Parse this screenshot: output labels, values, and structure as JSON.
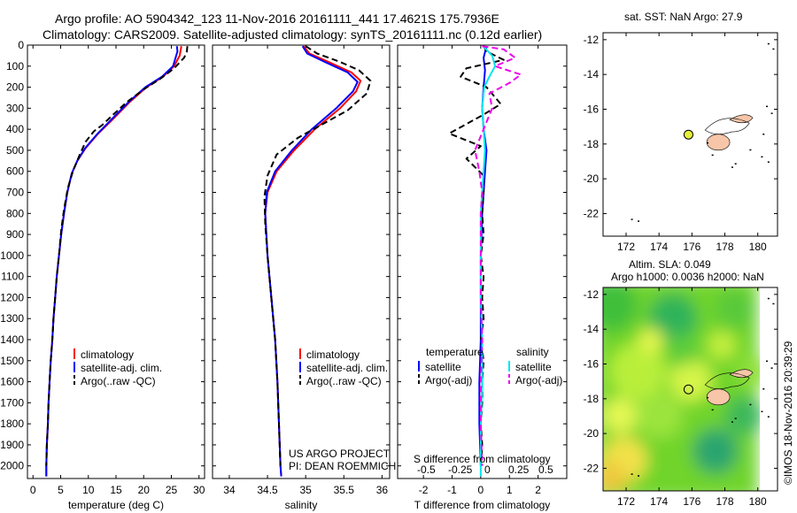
{
  "header": {
    "line1": "Argo profile: AO 5904342_123 11-Nov-2016 20161111_441 17.4621S 175.7936E",
    "line2": "Climatology: CARS2009. Satellite-adjusted climatology: synTS_20161111.nc (0.12d earlier)"
  },
  "sst_title": "sat. SST: NaN Argo: 27.9",
  "sla_title1": "Altim. SLA: 0.049",
  "sla_title2": "Argo h1000: 0.0036 h2000: NaN",
  "credit": "©IMOS 18-Nov-2016 20:39:29",
  "project": {
    "line1": "US ARGO PROJECT",
    "line2": "PI: DEAN ROEMMICH"
  },
  "colors": {
    "climatology": "#ff0000",
    "satellite": "#0000ff",
    "argo": "#000000",
    "sat_salinity": "#00e5ee",
    "argo_salinity": "#ee00ee",
    "land": "#f7c5a8"
  },
  "chart_data": [
    {
      "type": "line",
      "id": "temperature",
      "xlabel": "temperature (deg C)",
      "xlim": [
        -1,
        31
      ],
      "xticks": [
        0,
        5,
        10,
        15,
        20,
        25,
        30
      ],
      "ylim": [
        2060,
        0
      ],
      "yticks": [
        0,
        100,
        200,
        300,
        400,
        500,
        600,
        700,
        800,
        900,
        1000,
        1100,
        1200,
        1300,
        1400,
        1500,
        1600,
        1700,
        1800,
        1900,
        2000
      ],
      "legend": [
        "climatology",
        "satellite-adj. clim.",
        "Argo(..raw -QC)"
      ],
      "series": [
        {
          "name": "climatology",
          "points": [
            [
              26.8,
              5
            ],
            [
              26.5,
              50
            ],
            [
              25.5,
              100
            ],
            [
              23.5,
              150
            ],
            [
              20.5,
              200
            ],
            [
              17.5,
              270
            ],
            [
              14.5,
              350
            ],
            [
              11.8,
              420
            ],
            [
              9.5,
              490
            ],
            [
              8,
              550
            ],
            [
              7,
              610
            ],
            [
              6.2,
              700
            ],
            [
              5.6,
              800
            ],
            [
              5.1,
              900
            ],
            [
              4.7,
              1000
            ],
            [
              4.3,
              1100
            ],
            [
              4,
              1200
            ],
            [
              3.7,
              1300
            ],
            [
              3.5,
              1400
            ],
            [
              3.2,
              1500
            ],
            [
              3,
              1600
            ],
            [
              2.8,
              1700
            ],
            [
              2.7,
              1800
            ],
            [
              2.5,
              1900
            ],
            [
              2.4,
              2000
            ],
            [
              2.4,
              2050
            ]
          ]
        },
        {
          "name": "satellite-adj. clim.",
          "points": [
            [
              26,
              5
            ],
            [
              26.1,
              30
            ],
            [
              25.3,
              100
            ],
            [
              23.3,
              150
            ],
            [
              20.3,
              200
            ],
            [
              17.3,
              270
            ],
            [
              14.3,
              350
            ],
            [
              11.7,
              420
            ],
            [
              9.4,
              490
            ],
            [
              8,
              550
            ],
            [
              7,
              610
            ],
            [
              6.2,
              700
            ],
            [
              5.6,
              800
            ],
            [
              5.1,
              900
            ],
            [
              4.7,
              1000
            ],
            [
              4.3,
              1100
            ],
            [
              4,
              1200
            ],
            [
              3.7,
              1300
            ],
            [
              3.5,
              1400
            ],
            [
              3.2,
              1500
            ],
            [
              3,
              1600
            ],
            [
              2.8,
              1700
            ],
            [
              2.7,
              1800
            ],
            [
              2.5,
              1900
            ],
            [
              2.4,
              2000
            ],
            [
              2.4,
              2050
            ]
          ]
        },
        {
          "name": "Argo(..raw -QC)",
          "points": [
            [
              27.9,
              5
            ],
            [
              27.8,
              30
            ],
            [
              27.3,
              60
            ],
            [
              25.5,
              110
            ],
            [
              23,
              160
            ],
            [
              20,
              210
            ],
            [
              17,
              270
            ],
            [
              14.5,
              330
            ],
            [
              12.5,
              380
            ],
            [
              11,
              410
            ],
            [
              9.5,
              460
            ],
            [
              8.3,
              530
            ],
            [
              7.2,
              600
            ],
            [
              6.3,
              680
            ],
            [
              5.6,
              780
            ],
            [
              5.1,
              880
            ],
            [
              4.7,
              1000
            ],
            [
              4.3,
              1100
            ],
            [
              4,
              1200
            ],
            [
              3.7,
              1300
            ],
            [
              3.5,
              1400
            ],
            [
              3.2,
              1500
            ],
            [
              3,
              1600
            ],
            [
              2.8,
              1700
            ],
            [
              2.7,
              1800
            ],
            [
              2.5,
              1900
            ],
            [
              2.4,
              2000
            ]
          ]
        }
      ]
    },
    {
      "type": "line",
      "id": "salinity",
      "xlabel": "salinity",
      "xlim": [
        33.78,
        36.1
      ],
      "xticks": [
        34,
        34.5,
        35,
        35.5,
        36
      ],
      "ylim": [
        2060,
        0
      ],
      "legend": [
        "climatology",
        "satellite-adj. clim.",
        "Argo(..raw -QC)"
      ],
      "series": [
        {
          "name": "climatology",
          "points": [
            [
              34.97,
              5
            ],
            [
              35.05,
              40
            ],
            [
              35.3,
              80
            ],
            [
              35.6,
              130
            ],
            [
              35.72,
              170
            ],
            [
              35.66,
              220
            ],
            [
              35.45,
              300
            ],
            [
              35.12,
              400
            ],
            [
              34.85,
              500
            ],
            [
              34.62,
              600
            ],
            [
              34.5,
              700
            ],
            [
              34.47,
              800
            ],
            [
              34.5,
              1000
            ],
            [
              34.55,
              1200
            ],
            [
              34.6,
              1400
            ],
            [
              34.63,
              1600
            ],
            [
              34.65,
              1800
            ],
            [
              34.67,
              2000
            ],
            [
              34.68,
              2050
            ]
          ]
        },
        {
          "name": "satellite-adj. clim.",
          "points": [
            [
              34.96,
              5
            ],
            [
              35.02,
              40
            ],
            [
              35.25,
              80
            ],
            [
              35.55,
              130
            ],
            [
              35.68,
              175
            ],
            [
              35.62,
              220
            ],
            [
              35.4,
              300
            ],
            [
              35.08,
              400
            ],
            [
              34.82,
              500
            ],
            [
              34.6,
              600
            ],
            [
              34.49,
              700
            ],
            [
              34.47,
              800
            ],
            [
              34.5,
              1000
            ],
            [
              34.55,
              1200
            ],
            [
              34.6,
              1400
            ],
            [
              34.63,
              1600
            ],
            [
              34.65,
              1800
            ],
            [
              34.67,
              2000
            ],
            [
              34.68,
              2050
            ]
          ]
        },
        {
          "name": "Argo(..raw -QC)",
          "points": [
            [
              35,
              5
            ],
            [
              35.15,
              40
            ],
            [
              35.45,
              80
            ],
            [
              35.7,
              120
            ],
            [
              35.85,
              170
            ],
            [
              35.8,
              230
            ],
            [
              35.55,
              310
            ],
            [
              35.2,
              380
            ],
            [
              34.9,
              440
            ],
            [
              34.62,
              520
            ],
            [
              34.5,
              620
            ],
            [
              34.46,
              720
            ],
            [
              34.47,
              850
            ],
            [
              34.5,
              1000
            ],
            [
              34.55,
              1200
            ],
            [
              34.6,
              1400
            ],
            [
              34.63,
              1600
            ],
            [
              34.65,
              1800
            ],
            [
              34.67,
              2000
            ]
          ]
        }
      ]
    },
    {
      "type": "line",
      "id": "difference",
      "xlabel": "T difference from climatology",
      "xlabel2": "S difference from climatology",
      "xlim": [
        -2.9,
        3
      ],
      "xticks": [
        -2,
        -1,
        0,
        1,
        2
      ],
      "xticks2": [
        -0.5,
        -0.25,
        0,
        0.25,
        0.5
      ],
      "xtick2_labels": [
        "-0.5",
        "-0.25",
        "0",
        "0.25",
        "0.5"
      ],
      "ylim": [
        2060,
        0
      ],
      "legend_headers": [
        "temperature",
        "salinity"
      ],
      "legend": [
        "satellite",
        "Argo(-adj)",
        "satellite",
        "Argo(-adj)"
      ],
      "series": [
        {
          "name": "satellite",
          "points": [
            [
              0.2,
              5
            ],
            [
              0.1,
              60
            ],
            [
              0.15,
              120
            ],
            [
              0.1,
              200
            ],
            [
              0.05,
              300
            ],
            [
              0.1,
              400
            ],
            [
              0.2,
              500
            ],
            [
              0.15,
              600
            ],
            [
              0.1,
              700
            ],
            [
              0.05,
              800
            ],
            [
              0,
              1000
            ],
            [
              0,
              1200
            ],
            [
              0,
              1400
            ],
            [
              -0.05,
              1600
            ],
            [
              -0.05,
              1800
            ],
            [
              0,
              2000
            ]
          ]
        },
        {
          "name": "Argo(-adj)",
          "points": [
            [
              0.1,
              5
            ],
            [
              0.2,
              30
            ],
            [
              0.8,
              70
            ],
            [
              -0.5,
              110
            ],
            [
              -0.7,
              150
            ],
            [
              0.2,
              200
            ],
            [
              0.7,
              280
            ],
            [
              0.1,
              330
            ],
            [
              -1.1,
              420
            ],
            [
              0,
              480
            ],
            [
              -0.5,
              540
            ],
            [
              0.1,
              620
            ],
            [
              0.1,
              700
            ],
            [
              0.05,
              800
            ],
            [
              0.1,
              900
            ],
            [
              0,
              1000
            ],
            [
              0.1,
              1100
            ],
            [
              0.05,
              1200
            ],
            [
              0.1,
              1300
            ],
            [
              0,
              1400
            ],
            [
              0.1,
              1500
            ],
            [
              0.05,
              1600
            ],
            [
              0.05,
              1700
            ],
            [
              0,
              1800
            ],
            [
              0.05,
              1900
            ],
            [
              0,
              2000
            ]
          ]
        },
        {
          "name": "satellite",
          "points": [
            [
              0.08,
              5
            ],
            [
              0.4,
              50
            ],
            [
              0.5,
              100
            ],
            [
              0.3,
              150
            ],
            [
              0.12,
              200
            ],
            [
              0.05,
              300
            ],
            [
              0.1,
              400
            ],
            [
              0.15,
              500
            ],
            [
              0.1,
              600
            ],
            [
              0.05,
              700
            ],
            [
              0,
              800
            ],
            [
              0,
              1000
            ],
            [
              0,
              1200
            ],
            [
              0.05,
              1400
            ],
            [
              0.05,
              1600
            ],
            [
              0,
              1800
            ],
            [
              0,
              2000
            ],
            [
              0,
              2050
            ]
          ]
        },
        {
          "name": "Argo(-adj)",
          "points": [
            [
              0.05,
              5
            ],
            [
              0.8,
              20
            ],
            [
              1.2,
              60
            ],
            [
              0.5,
              100
            ],
            [
              1.4,
              140
            ],
            [
              1,
              180
            ],
            [
              0.3,
              230
            ],
            [
              0.4,
              300
            ],
            [
              0.1,
              400
            ],
            [
              -0.2,
              500
            ],
            [
              -0.05,
              600
            ],
            [
              0.05,
              700
            ],
            [
              0,
              800
            ],
            [
              0,
              1000
            ],
            [
              0,
              1200
            ],
            [
              0.05,
              1400
            ],
            [
              0,
              1600
            ],
            [
              0,
              1800
            ],
            [
              0.05,
              2000
            ]
          ]
        }
      ]
    },
    {
      "type": "scatter",
      "id": "sst-map",
      "xlim": [
        170.6,
        181.2
      ],
      "ylim": [
        -23.3,
        -11.6
      ],
      "xticks": [
        172,
        174,
        176,
        178,
        180
      ],
      "yticks": [
        -12,
        -14,
        -16,
        -18,
        -20,
        -22
      ],
      "ytick_labels": [
        "-12",
        "-14",
        "-16",
        "-18",
        "-20",
        "-22"
      ],
      "float_position": {
        "lon": 175.79,
        "lat": -17.46
      }
    },
    {
      "type": "heatmap",
      "id": "sla-map",
      "xlim": [
        170.6,
        181.2
      ],
      "ylim": [
        -23.3,
        -11.6
      ],
      "xticks": [
        172,
        174,
        176,
        178,
        180
      ],
      "yticks": [
        -12,
        -14,
        -16,
        -18,
        -20,
        -22
      ],
      "ytick_labels": [
        "-12",
        "-14",
        "-16",
        "-18",
        "-20",
        "-22"
      ],
      "float_position": {
        "lon": 175.79,
        "lat": -17.46
      }
    }
  ]
}
